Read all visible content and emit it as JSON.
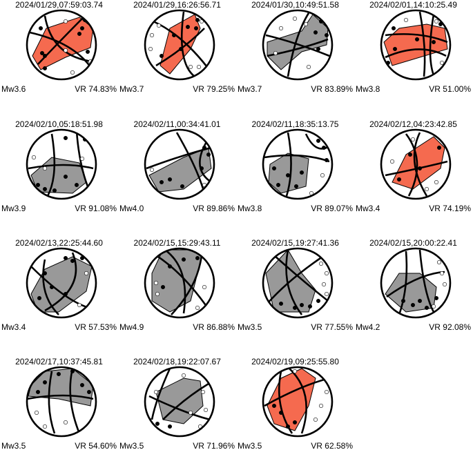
{
  "colors": {
    "poor_fit": "#f56a4f",
    "good_fit": "#999999",
    "outline": "#000000"
  },
  "events": [
    {
      "time": "2024/01/29,07:59:03.74",
      "mw": "Mw3.6",
      "vr": "VR 74.83%",
      "fill": "poor_fit",
      "fill_percent": 45
    },
    {
      "time": "2024/01/29,16:26:56.71",
      "mw": "Mw3.7",
      "vr": "VR 79.25%",
      "fill": "poor_fit",
      "fill_percent": 35
    },
    {
      "time": "2024/01/30,10:49:51.58",
      "mw": "Mw3.7",
      "vr": "VR 83.89%",
      "fill": "good_fit",
      "fill_percent": 45
    },
    {
      "time": "2024/02/01,14:10:25.49",
      "mw": "Mw3.8",
      "vr": "VR 51.00%",
      "fill": "poor_fit",
      "fill_percent": 40
    },
    {
      "time": "2024/02/10,05:18:51.98",
      "mw": "Mw3.9",
      "vr": "VR 91.08%",
      "fill": "good_fit",
      "fill_percent": 35
    },
    {
      "time": "2024/02/11,00:34:41.01",
      "mw": "Mw4.0",
      "vr": "VR 89.86%",
      "fill": "good_fit",
      "fill_percent": 30
    },
    {
      "time": "2024/02/11,18:35:13.75",
      "mw": "Mw3.8",
      "vr": "VR 89.07%",
      "fill": "good_fit",
      "fill_percent": 40
    },
    {
      "time": "2024/02/12,04:23:42.85",
      "mw": "Mw3.4",
      "vr": "VR 74.19%",
      "fill": "poor_fit",
      "fill_percent": 50
    },
    {
      "time": "2024/02/13,22:25:44.60",
      "mw": "Mw3.4",
      "vr": "VR 57.53%",
      "fill": "good_fit",
      "fill_percent": 50
    },
    {
      "time": "2024/02/15,15:29:43.11",
      "mw": "Mw4.9",
      "vr": "VR 86.88%",
      "fill": "good_fit",
      "fill_percent": 55
    },
    {
      "time": "2024/02/15,19:27:41.36",
      "mw": "Mw3.5",
      "vr": "VR 77.55%",
      "fill": "good_fit",
      "fill_percent": 55
    },
    {
      "time": "2024/02/15,20:00:22.41",
      "mw": "Mw4.2",
      "vr": "VR 92.08%",
      "fill": "good_fit",
      "fill_percent": 45
    },
    {
      "time": "2024/02/17,10:37:45.81",
      "mw": "Mw3.5",
      "vr": "VR 54.60%",
      "fill": "good_fit",
      "fill_percent": 55
    },
    {
      "time": "2024/02/18,19:22:07.67",
      "mw": "Mw3.5",
      "vr": "VR 71.96%",
      "fill": "good_fit",
      "fill_percent": 30
    },
    {
      "time": "2024/02/19,09:25:55.80",
      "mw": "Mw3.5",
      "vr": "VR 62.58%",
      "fill": "poor_fit",
      "fill_percent": 40
    }
  ]
}
